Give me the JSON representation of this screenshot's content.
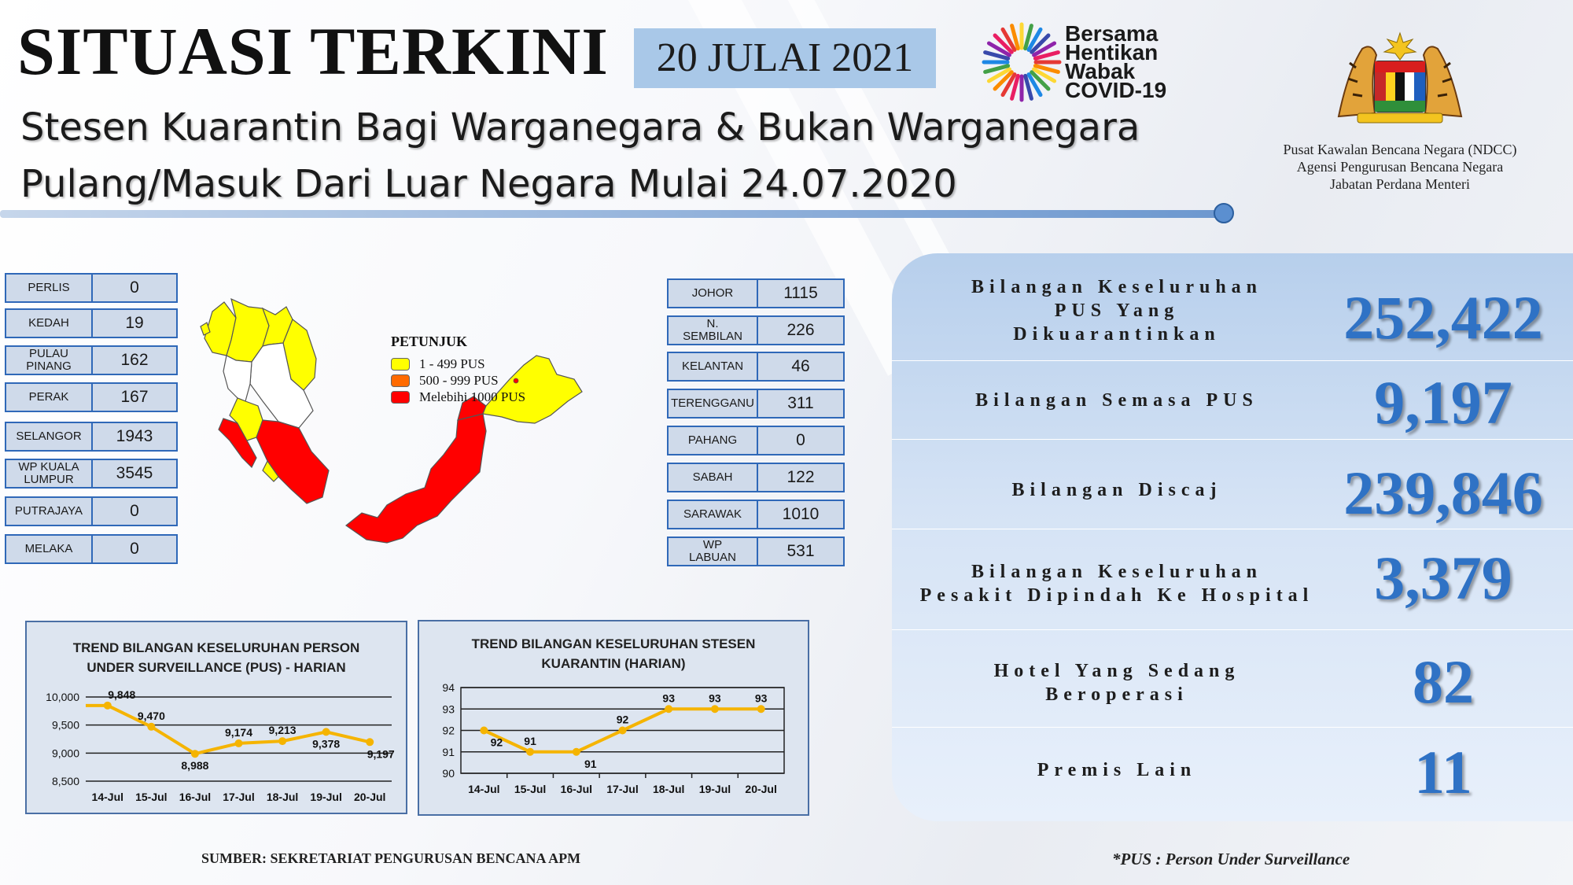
{
  "header": {
    "title": "SITUASI TERKINI",
    "date": "20 JULAI 2021",
    "subtitle_line1": "Stesen Kuarantin Bagi Warganegara & Bukan Warganegara",
    "subtitle_line2": "Pulang/Masuk Dari Luar Negara Mulai 24.07.2020",
    "logo_words": [
      "Bersama",
      "Hentikan",
      "Wabak",
      "COVID-19"
    ],
    "agency_lines": [
      "Pusat Kawalan Bencana Negara (NDCC)",
      "Agensi Pengurusan Bencana Negara",
      "Jabatan Perdana Menteri"
    ]
  },
  "states_left": [
    {
      "name": "PERLIS",
      "value": "0"
    },
    {
      "name": "KEDAH",
      "value": "19"
    },
    {
      "name": "PULAU\nPINANG",
      "value": "162"
    },
    {
      "name": "PERAK",
      "value": "167"
    },
    {
      "name": "SELANGOR",
      "value": "1943"
    },
    {
      "name": "WP KUALA\nLUMPUR",
      "value": "3545"
    },
    {
      "name": "PUTRAJAYA",
      "value": "0"
    },
    {
      "name": "MELAKA",
      "value": "0"
    }
  ],
  "states_right": [
    {
      "name": "JOHOR",
      "value": "1115"
    },
    {
      "name": "N.\nSEMBILAN",
      "value": "226"
    },
    {
      "name": "KELANTAN",
      "value": "46"
    },
    {
      "name": "TERENGGANU",
      "value": "311"
    },
    {
      "name": "PAHANG",
      "value": "0"
    },
    {
      "name": "SABAH",
      "value": "122"
    },
    {
      "name": "SARAWAK",
      "value": "1010"
    },
    {
      "name": "WP\nLABUAN",
      "value": "531"
    }
  ],
  "legend": {
    "title": "PETUNJUK",
    "items": [
      {
        "label": "1 - 499 PUS",
        "color": "#ffff00"
      },
      {
        "label": "500 - 999 PUS",
        "color": "#ff6a00"
      },
      {
        "label": "Melebihi 1000 PUS",
        "color": "#ff0000"
      }
    ]
  },
  "map_colors": {
    "low": "#ffff00",
    "high": "#ff0000",
    "none": "#ffffff"
  },
  "stats": [
    {
      "label": "Bilangan Keseluruhan\nPUS Yang\nDikuarantinkan",
      "value": "252,422"
    },
    {
      "label": "Bilangan Semasa PUS",
      "value": "9,197"
    },
    {
      "label": "Bilangan Discaj",
      "value": "239,846"
    },
    {
      "label": "Bilangan Keseluruhan\nPesakit Dipindah Ke Hospital",
      "value": "3,379"
    },
    {
      "label": "Hotel Yang Sedang\nBeroperasi",
      "value": "82"
    },
    {
      "label": "Premis Lain",
      "value": "11"
    }
  ],
  "chart_data": [
    {
      "type": "line",
      "title": "TREND BILANGAN KESELURUHAN PERSON UNDER SURVEILLANCE (PUS) - HARIAN",
      "categories": [
        "14-Jul",
        "15-Jul",
        "16-Jul",
        "17-Jul",
        "18-Jul",
        "19-Jul",
        "20-Jul"
      ],
      "values": [
        9848,
        9470,
        8988,
        9174,
        9213,
        9378,
        9197
      ],
      "data_labels": [
        "9,848",
        "9,470",
        "8,988",
        "9,174",
        "9,213",
        "9,378",
        "9,197"
      ],
      "ylim": [
        8500,
        10000
      ],
      "yticks": [
        10000,
        9500,
        9000,
        8500
      ],
      "ytick_labels": [
        "10,000",
        "9,500",
        "9,000",
        "8,500"
      ],
      "grid": true,
      "color": "#f5b400"
    },
    {
      "type": "line",
      "title": "TREND BILANGAN KESELURUHAN STESEN KUARANTIN (HARIAN)",
      "categories": [
        "14-Jul",
        "15-Jul",
        "16-Jul",
        "17-Jul",
        "18-Jul",
        "19-Jul",
        "20-Jul"
      ],
      "values": [
        92,
        91,
        91,
        92,
        93,
        93,
        93
      ],
      "data_labels": [
        "92",
        "91",
        "91",
        "92",
        "93",
        "93",
        "93"
      ],
      "ylim": [
        90,
        94
      ],
      "yticks": [
        94,
        93,
        92,
        91,
        90
      ],
      "ytick_labels": [
        "94",
        "93",
        "92",
        "91",
        "90"
      ],
      "grid": true,
      "color": "#f5b400"
    }
  ],
  "footer": {
    "source": "SUMBER: SEKRETARIAT PENGURUSAN BENCANA APM",
    "footnote": "*PUS : Person Under Surveillance"
  }
}
